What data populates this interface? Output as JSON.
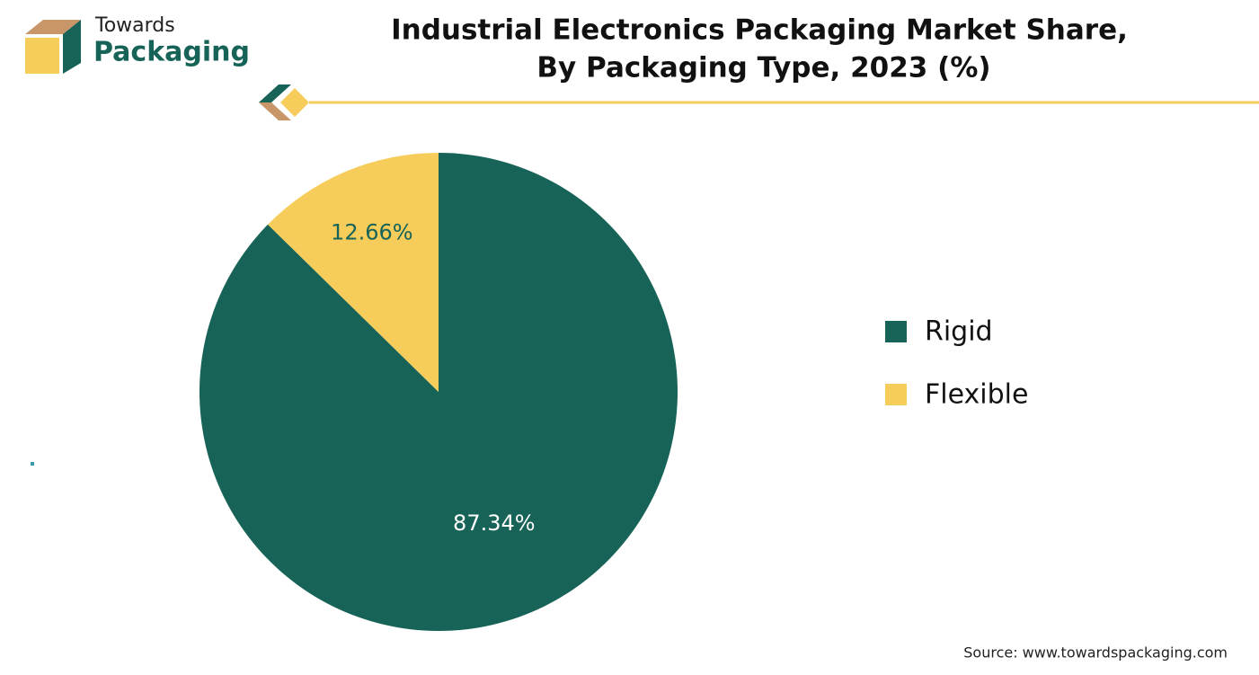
{
  "logo": {
    "top": "Towards",
    "bottom": "Packaging"
  },
  "chart_data": {
    "type": "pie",
    "title": [
      "Industrial Electronics Packaging Market Share,",
      "By Packaging Type, 2023 (%)"
    ],
    "categories": [
      "Rigid",
      "Flexible"
    ],
    "values": [
      87.34,
      12.66
    ],
    "value_labels": [
      "87.34%",
      "12.66%"
    ],
    "colors": [
      "#176358",
      "#f6cd5b"
    ],
    "label_colors": [
      "#ffffff",
      "#176358"
    ],
    "legend": "right"
  },
  "source": "Source: www.towardspackaging.com"
}
